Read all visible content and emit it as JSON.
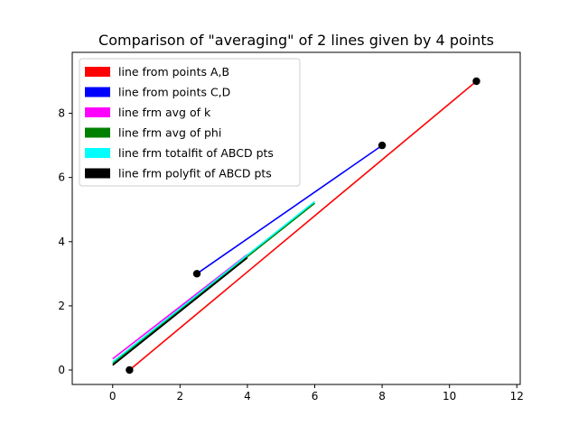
{
  "chart_data": {
    "type": "line",
    "title": "Comparison of \"averaging\" of 2 lines given by 4 points",
    "xlabel": "",
    "ylabel": "",
    "xlim": [
      -1.2,
      12.1
    ],
    "ylim": [
      -0.45,
      9.9
    ],
    "xticks": [
      0,
      2,
      4,
      6,
      8,
      10,
      12
    ],
    "yticks": [
      0,
      2,
      4,
      6,
      8
    ],
    "grid": false,
    "legend_position": "top-left",
    "series": [
      {
        "name": "line from points  A,B",
        "color": "#ff0000",
        "x": [
          0.5,
          10.8
        ],
        "y": [
          0.0,
          9.0
        ]
      },
      {
        "name": "line from points  C,D",
        "color": "#0000ff",
        "x": [
          2.5,
          8.0
        ],
        "y": [
          3.0,
          7.0
        ]
      },
      {
        "name": "line frm avg of k",
        "color": "#ff00ff",
        "x": [
          0.0,
          4.0
        ],
        "y": [
          0.35,
          3.6
        ]
      },
      {
        "name": "line frm avg of phi",
        "color": "#008000",
        "x": [
          0.0,
          6.0
        ],
        "y": [
          0.2,
          5.2
        ]
      },
      {
        "name": "line frm totalfit of ABCD pts",
        "color": "#00ffff",
        "x": [
          0.0,
          6.0
        ],
        "y": [
          0.25,
          5.25
        ]
      },
      {
        "name": "line frm polyfit of ABCD pts",
        "color": "#000000",
        "x": [
          0.0,
          4.0
        ],
        "y": [
          0.15,
          3.5
        ]
      }
    ],
    "points": {
      "color": "#000000",
      "x": [
        0.5,
        10.8,
        2.5,
        8.0
      ],
      "y": [
        0.0,
        9.0,
        3.0,
        7.0
      ]
    }
  }
}
